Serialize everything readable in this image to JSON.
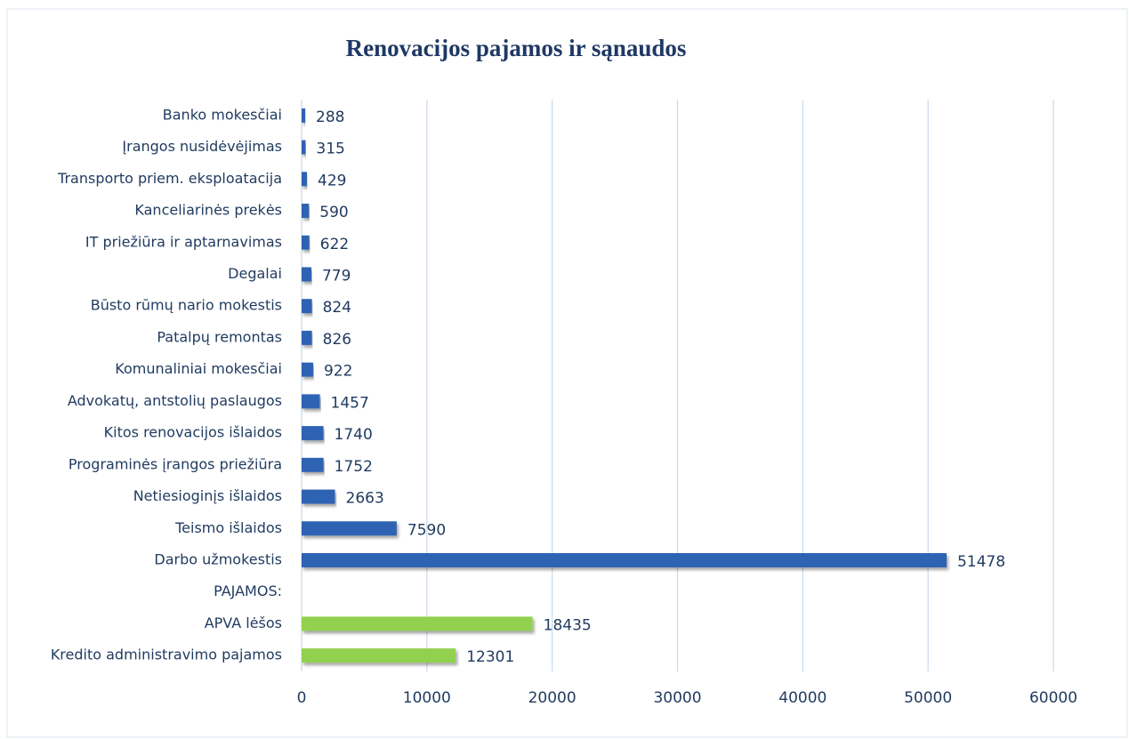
{
  "chart_data": {
    "type": "barh",
    "title": "Renovacijos pajamos ir sąnaudos",
    "categories": [
      "Banko mokesčiai",
      "Įrangos nusidėvėjimas",
      "Transporto priem. eksploatacija",
      "Kanceliarinės prekės",
      "IT priežiūra ir aptarnavimas",
      "Degalai",
      "Būsto rūmų nario mokestis",
      "Patalpų remontas",
      "Komunaliniai mokesčiai",
      "Advokatų, antstolių paslaugos",
      "Kitos renovacijos išlaidos",
      "Programinės įrangos priežiūra",
      "Netiesioginįs išlaidos",
      "Teismo išlaidos",
      "Darbo užmokestis",
      "PAJAMOS:",
      "APVA lėšos",
      "Kredito administravimo pajamos"
    ],
    "values": [
      288,
      315,
      429,
      590,
      622,
      779,
      824,
      826,
      922,
      1457,
      1740,
      1752,
      2663,
      7590,
      51478,
      null,
      18435,
      12301
    ],
    "colors": [
      "#2e64b4",
      "#2e64b4",
      "#2e64b4",
      "#2e64b4",
      "#2e64b4",
      "#2e64b4",
      "#2e64b4",
      "#2e64b4",
      "#2e64b4",
      "#2e64b4",
      "#2e64b4",
      "#2e64b4",
      "#2e64b4",
      "#2e64b4",
      "#2e64b4",
      "#2e64b4",
      "#92d050",
      "#92d050"
    ],
    "xlim": [
      0,
      60000
    ],
    "xticks": [
      0,
      10000,
      20000,
      30000,
      40000,
      50000,
      60000
    ],
    "grid": true
  }
}
